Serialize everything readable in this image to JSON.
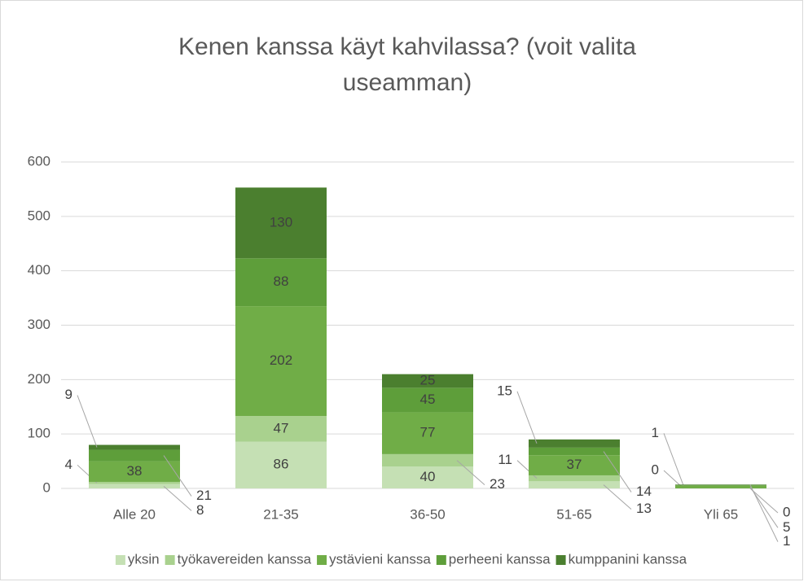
{
  "chart_data": {
    "type": "stacked_bar",
    "title": "Kenen kanssa käyt kahvilassa? (voit valita useamman)",
    "categories": [
      "Alle 20",
      "21-35",
      "36-50",
      "51-65",
      "Yli 65"
    ],
    "series": [
      {
        "name": "yksin",
        "color": "#c5e0b4",
        "values": [
          8,
          86,
          40,
          13,
          0
        ]
      },
      {
        "name": "työkavereiden kanssa",
        "color": "#a9d18e",
        "values": [
          4,
          47,
          23,
          11,
          0
        ]
      },
      {
        "name": "ystävieni kanssa",
        "color": "#70ad47",
        "values": [
          38,
          202,
          77,
          37,
          5
        ]
      },
      {
        "name": "perheeni kanssa",
        "color": "#5e9e3a",
        "values": [
          21,
          88,
          45,
          14,
          1
        ]
      },
      {
        "name": "kumppanini kanssa",
        "color": "#4b7f2f",
        "values": [
          9,
          130,
          25,
          15,
          1
        ]
      }
    ],
    "ylim": [
      0,
      600
    ],
    "yticks": [
      0,
      100,
      200,
      300,
      400,
      500,
      600
    ],
    "grid": true,
    "legend": "bottom"
  }
}
